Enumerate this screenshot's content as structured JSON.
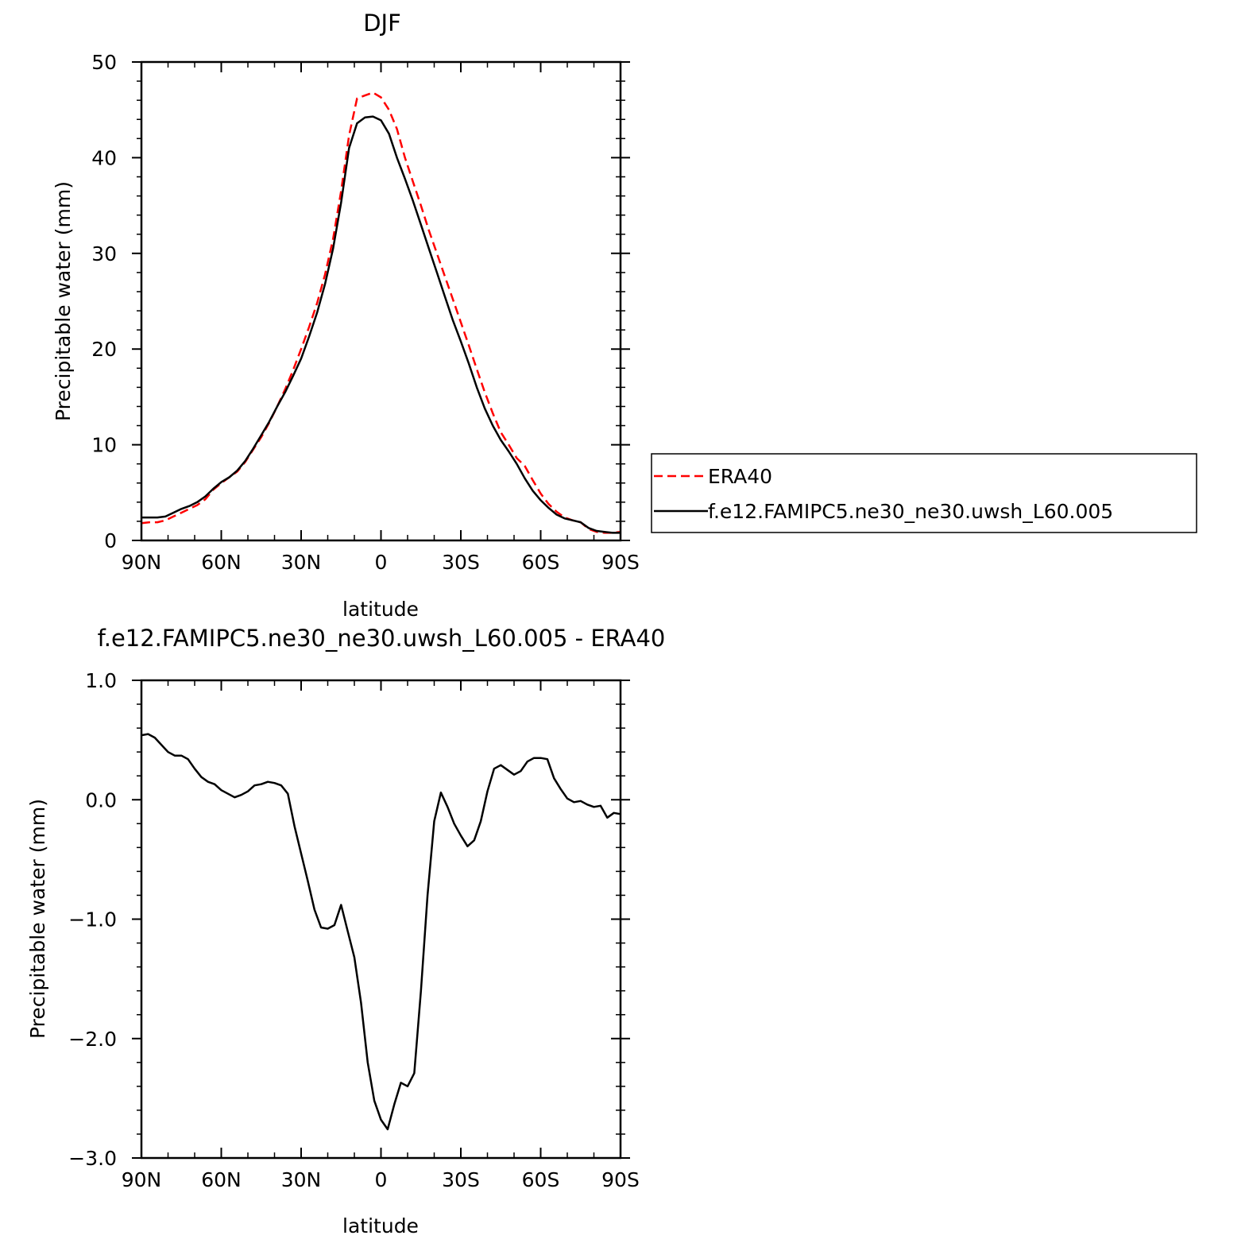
{
  "chart_data": [
    {
      "type": "line",
      "title": "DJF",
      "xlabel": "latitude",
      "ylabel": "Precipitable water (mm)",
      "xlim": [
        90,
        -90
      ],
      "ylim": [
        0,
        50
      ],
      "x_ticks": [
        90,
        60,
        30,
        0,
        -30,
        -60,
        -90
      ],
      "x_tick_labels": [
        "90N",
        "60N",
        "30N",
        "0",
        "30S",
        "60S",
        "90S"
      ],
      "y_ticks": [
        0,
        10,
        20,
        30,
        40,
        50
      ],
      "y_tick_labels": [
        "0",
        "10",
        "20",
        "30",
        "40",
        "50"
      ],
      "x": [
        90,
        87,
        84,
        81,
        78,
        75,
        72,
        69,
        66,
        63,
        60,
        57,
        54,
        51,
        48,
        45,
        42,
        39,
        36,
        33,
        30,
        27,
        24,
        21,
        18,
        15,
        12,
        9,
        6,
        3,
        0,
        -3,
        -6,
        -9,
        -12,
        -15,
        -18,
        -21,
        -24,
        -27,
        -30,
        -33,
        -36,
        -39,
        -42,
        -45,
        -48,
        -51,
        -54,
        -57,
        -60,
        -63,
        -66,
        -69,
        -72,
        -75,
        -78,
        -81,
        -84,
        -87,
        -90
      ],
      "series": [
        {
          "name": "ERA40",
          "color": "#ff0000",
          "dash": "dashed",
          "values": [
            1.8,
            1.9,
            1.9,
            2.1,
            2.5,
            2.9,
            3.3,
            3.7,
            4.3,
            5.3,
            6.0,
            6.6,
            7.2,
            8.2,
            9.5,
            10.8,
            12.3,
            14.0,
            15.8,
            17.8,
            20.0,
            22.3,
            24.8,
            27.8,
            31.5,
            36.5,
            42.3,
            46.2,
            46.5,
            46.8,
            46.3,
            45.0,
            43.0,
            40.0,
            37.5,
            35.0,
            32.4,
            30.0,
            27.6,
            25.2,
            22.8,
            20.4,
            17.9,
            15.5,
            13.3,
            11.3,
            10.0,
            8.6,
            7.8,
            6.3,
            4.9,
            3.8,
            3.0,
            2.4,
            2.1,
            1.9,
            1.2,
            0.9,
            0.8,
            0.8,
            0.9
          ]
        },
        {
          "name": "f.e12.FAMIPC5.ne30_ne30.uwsh_L60.005",
          "color": "#000000",
          "dash": "solid",
          "values": [
            2.4,
            2.4,
            2.4,
            2.5,
            2.9,
            3.3,
            3.6,
            4.0,
            4.6,
            5.4,
            6.1,
            6.6,
            7.3,
            8.3,
            9.6,
            11.0,
            12.4,
            14.0,
            15.5,
            17.2,
            19.0,
            21.3,
            23.8,
            26.8,
            30.5,
            35.3,
            41.0,
            43.6,
            44.2,
            44.3,
            43.9,
            42.5,
            40.0,
            37.8,
            35.5,
            33.0,
            30.5,
            28.0,
            25.5,
            23.0,
            20.8,
            18.5,
            16.0,
            13.8,
            12.0,
            10.5,
            9.3,
            8.0,
            6.5,
            5.2,
            4.2,
            3.4,
            2.7,
            2.3,
            2.1,
            1.9,
            1.3,
            1.0,
            0.9,
            0.8,
            0.8
          ]
        }
      ],
      "legend": "right"
    },
    {
      "type": "line",
      "title": "f.e12.FAMIPC5.ne30_ne30.uwsh_L60.005 - ERA40",
      "xlabel": "latitude",
      "ylabel": "Precipitable water (mm)",
      "xlim": [
        90,
        -90
      ],
      "ylim": [
        -3.0,
        1.0
      ],
      "x_ticks": [
        90,
        60,
        30,
        0,
        -30,
        -60,
        -90
      ],
      "x_tick_labels": [
        "90N",
        "60N",
        "30N",
        "0",
        "30S",
        "60S",
        "90S"
      ],
      "y_ticks": [
        -3.0,
        -2.0,
        -1.0,
        0.0,
        1.0
      ],
      "y_tick_labels": [
        "−3.0",
        "−2.0",
        "−1.0",
        "0.0",
        "1.0"
      ],
      "x": [
        90,
        87.5,
        85,
        82.5,
        80,
        77.5,
        75,
        72.5,
        70,
        67.5,
        65,
        62.5,
        60,
        57.5,
        55,
        52.5,
        50,
        47.5,
        45,
        42.5,
        40,
        37.5,
        35,
        32.5,
        30,
        27.5,
        25,
        22.5,
        20,
        17.5,
        15,
        12.5,
        10,
        7.5,
        5,
        2.5,
        0,
        -2.5,
        -5,
        -7.5,
        -10,
        -12.5,
        -15,
        -17.5,
        -20,
        -22.5,
        -25,
        -27.5,
        -30,
        -32.5,
        -35,
        -37.5,
        -40,
        -42.5,
        -45,
        -47.5,
        -50,
        -52.5,
        -55,
        -57.5,
        -60,
        -62.5,
        -65,
        -67.5,
        -70,
        -72.5,
        -75,
        -77.5,
        -80,
        -82.5,
        -85,
        -87.5,
        -90
      ],
      "series": [
        {
          "name": "f.e12.FAMIPC5.ne30_ne30.uwsh_L60.005 - ERA40",
          "color": "#000000",
          "dash": "solid",
          "values": [
            0.54,
            0.55,
            0.52,
            0.46,
            0.4,
            0.37,
            0.37,
            0.34,
            0.26,
            0.19,
            0.15,
            0.13,
            0.08,
            0.05,
            0.02,
            0.04,
            0.07,
            0.12,
            0.13,
            0.15,
            0.14,
            0.12,
            0.05,
            -0.22,
            -0.45,
            -0.68,
            -0.92,
            -1.07,
            -1.08,
            -1.05,
            -0.88,
            -1.1,
            -1.32,
            -1.7,
            -2.2,
            -2.52,
            -2.68,
            -2.76,
            -2.55,
            -2.37,
            -2.4,
            -2.29,
            -1.6,
            -0.8,
            -0.18,
            0.06,
            -0.06,
            -0.2,
            -0.3,
            -0.39,
            -0.34,
            -0.18,
            0.07,
            0.26,
            0.29,
            0.25,
            0.21,
            0.24,
            0.32,
            0.35,
            0.35,
            0.34,
            0.18,
            0.09,
            0.01,
            -0.02,
            -0.01,
            -0.04,
            -0.06,
            -0.05,
            -0.15,
            -0.11,
            -0.12
          ]
        }
      ]
    }
  ]
}
